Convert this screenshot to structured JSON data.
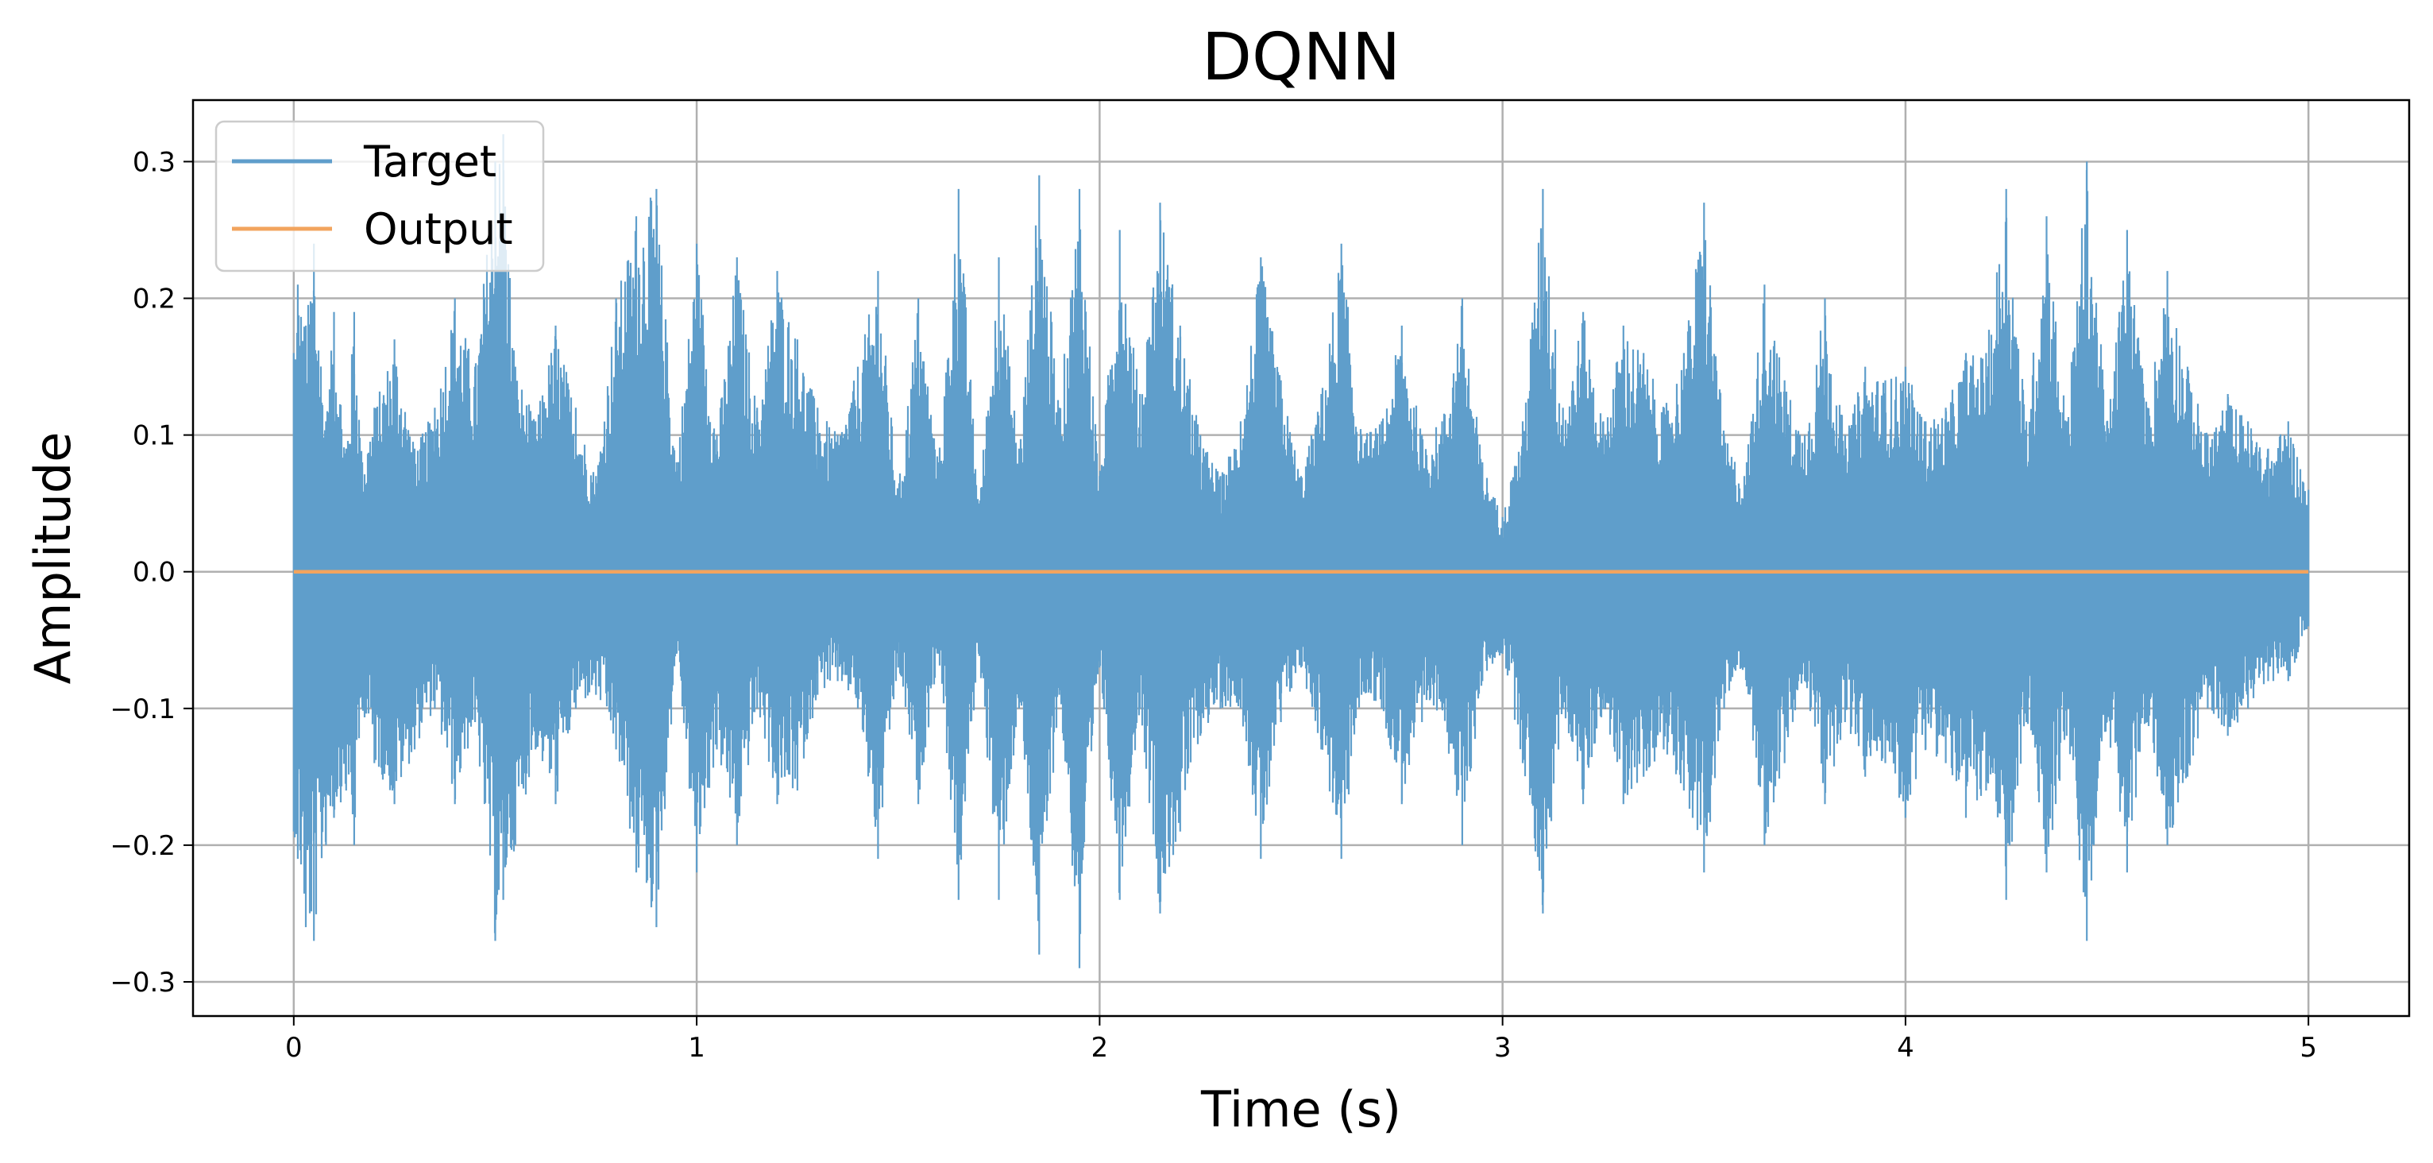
{
  "chart_data": {
    "type": "line",
    "title": "DQNN",
    "xlabel": "Time (s)",
    "ylabel": "Amplitude",
    "xlim": [
      -0.25,
      5.25
    ],
    "ylim": [
      -0.325,
      0.345
    ],
    "xticks": [
      0,
      1,
      2,
      3,
      4,
      5
    ],
    "xtick_labels": [
      "0",
      "1",
      "2",
      "3",
      "4",
      "5"
    ],
    "yticks": [
      0.3,
      0.2,
      0.1,
      0.0,
      -0.1,
      -0.2,
      -0.3
    ],
    "ytick_labels": [
      "0.3",
      "0.2",
      "0.1",
      "0.0",
      "−0.1",
      "−0.2",
      "−0.3"
    ],
    "grid": true,
    "legend": {
      "placement": "upper-left",
      "entries": [
        "Target",
        "Output"
      ]
    },
    "series": [
      {
        "name": "Target",
        "color": "#5f9ecb",
        "envelope": {
          "x": [
            0.0,
            0.01,
            0.03,
            0.05,
            0.08,
            0.1,
            0.13,
            0.15,
            0.17,
            0.2,
            0.25,
            0.3,
            0.35,
            0.4,
            0.45,
            0.5,
            0.52,
            0.55,
            0.6,
            0.65,
            0.7,
            0.75,
            0.8,
            0.85,
            0.9,
            0.95,
            1.0,
            1.05,
            1.1,
            1.15,
            1.2,
            1.25,
            1.3,
            1.35,
            1.4,
            1.45,
            1.5,
            1.55,
            1.6,
            1.65,
            1.7,
            1.75,
            1.8,
            1.85,
            1.9,
            1.95,
            2.0,
            2.05,
            2.1,
            2.15,
            2.2,
            2.25,
            2.3,
            2.35,
            2.4,
            2.45,
            2.5,
            2.55,
            2.6,
            2.65,
            2.7,
            2.75,
            2.8,
            2.85,
            2.9,
            2.95,
            3.0,
            3.05,
            3.1,
            3.15,
            3.2,
            3.25,
            3.3,
            3.35,
            3.4,
            3.45,
            3.5,
            3.55,
            3.6,
            3.65,
            3.7,
            3.75,
            3.8,
            3.85,
            3.9,
            3.95,
            4.0,
            4.05,
            4.1,
            4.15,
            4.2,
            4.25,
            4.3,
            4.35,
            4.4,
            4.45,
            4.5,
            4.55,
            4.6,
            4.65,
            4.7,
            4.75,
            4.8,
            4.85,
            4.9,
            4.95,
            5.0
          ],
          "upper": [
            0.16,
            0.21,
            0.18,
            0.24,
            0.11,
            0.19,
            0.09,
            0.19,
            0.08,
            0.12,
            0.17,
            0.09,
            0.12,
            0.2,
            0.15,
            0.3,
            0.32,
            0.15,
            0.11,
            0.18,
            0.12,
            0.07,
            0.2,
            0.26,
            0.28,
            0.08,
            0.24,
            0.1,
            0.23,
            0.12,
            0.22,
            0.17,
            0.12,
            0.1,
            0.15,
            0.22,
            0.06,
            0.2,
            0.08,
            0.28,
            0.05,
            0.23,
            0.09,
            0.29,
            0.12,
            0.28,
            0.07,
            0.25,
            0.13,
            0.27,
            0.18,
            0.1,
            0.07,
            0.11,
            0.23,
            0.14,
            0.07,
            0.13,
            0.24,
            0.1,
            0.11,
            0.18,
            0.1,
            0.11,
            0.2,
            0.08,
            0.04,
            0.11,
            0.28,
            0.12,
            0.19,
            0.11,
            0.18,
            0.16,
            0.12,
            0.16,
            0.27,
            0.1,
            0.07,
            0.21,
            0.14,
            0.1,
            0.2,
            0.1,
            0.15,
            0.14,
            0.15,
            0.11,
            0.12,
            0.16,
            0.16,
            0.28,
            0.11,
            0.26,
            0.11,
            0.3,
            0.11,
            0.25,
            0.12,
            0.22,
            0.15,
            0.1,
            0.13,
            0.11,
            0.09,
            0.11,
            0.06
          ],
          "lower": [
            -0.19,
            -0.21,
            -0.26,
            -0.27,
            -0.2,
            -0.18,
            -0.16,
            -0.2,
            -0.1,
            -0.14,
            -0.17,
            -0.13,
            -0.1,
            -0.17,
            -0.11,
            -0.27,
            -0.24,
            -0.2,
            -0.13,
            -0.17,
            -0.1,
            -0.09,
            -0.13,
            -0.22,
            -0.26,
            -0.06,
            -0.22,
            -0.13,
            -0.2,
            -0.1,
            -0.17,
            -0.16,
            -0.09,
            -0.08,
            -0.1,
            -0.21,
            -0.07,
            -0.17,
            -0.06,
            -0.24,
            -0.06,
            -0.24,
            -0.1,
            -0.28,
            -0.09,
            -0.29,
            -0.07,
            -0.24,
            -0.1,
            -0.25,
            -0.19,
            -0.12,
            -0.1,
            -0.1,
            -0.21,
            -0.11,
            -0.07,
            -0.13,
            -0.21,
            -0.09,
            -0.1,
            -0.17,
            -0.11,
            -0.1,
            -0.2,
            -0.08,
            -0.06,
            -0.14,
            -0.25,
            -0.1,
            -0.17,
            -0.1,
            -0.17,
            -0.15,
            -0.13,
            -0.16,
            -0.22,
            -0.1,
            -0.07,
            -0.2,
            -0.14,
            -0.08,
            -0.17,
            -0.11,
            -0.15,
            -0.14,
            -0.18,
            -0.13,
            -0.14,
            -0.18,
            -0.16,
            -0.24,
            -0.11,
            -0.22,
            -0.12,
            -0.27,
            -0.11,
            -0.22,
            -0.11,
            -0.2,
            -0.15,
            -0.1,
            -0.12,
            -0.1,
            -0.08,
            -0.08,
            -0.04
          ]
        }
      },
      {
        "name": "Output",
        "color": "#f2a45e",
        "x": [
          0,
          5
        ],
        "y": [
          0.0,
          0.0
        ]
      }
    ]
  }
}
